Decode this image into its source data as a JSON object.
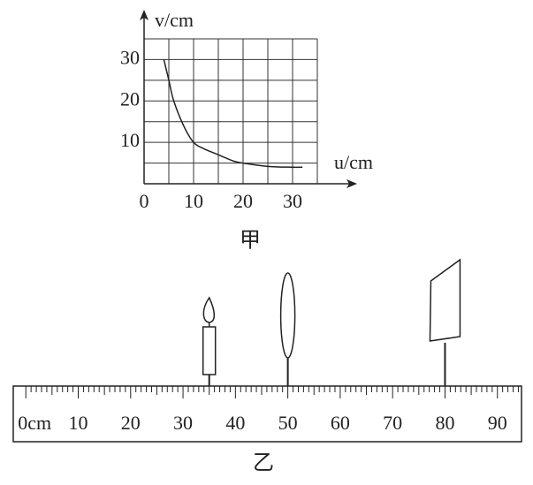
{
  "chart_data": {
    "type": "line",
    "x": [
      4,
      5,
      6,
      8,
      10,
      12,
      15,
      18,
      20,
      25,
      30,
      32
    ],
    "values": [
      30,
      25,
      20,
      14,
      10,
      8.5,
      7,
      5.5,
      5,
      4.2,
      4,
      4
    ],
    "xlabel": "u/cm",
    "ylabel": "v/cm",
    "xlim": [
      0,
      35
    ],
    "ylim": [
      0,
      35
    ],
    "xticks": [
      0,
      10,
      20,
      30
    ],
    "yticks": [
      10,
      20,
      30
    ],
    "grid": true,
    "grid_step": 5,
    "color": "#222",
    "caption": "甲"
  },
  "ruler": {
    "xlim": [
      -2.4,
      94.6
    ],
    "minor_step": 1,
    "labels": [
      {
        "value": 0,
        "label": "0cm"
      },
      10,
      20,
      30,
      40,
      50,
      60,
      70,
      80,
      90
    ],
    "candle": 35,
    "lens": 50,
    "screen": 80,
    "caption": "乙"
  }
}
